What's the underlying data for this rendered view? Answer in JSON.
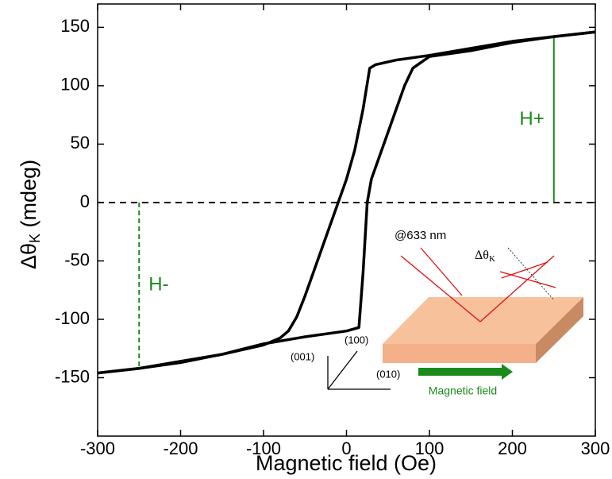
{
  "chart_data": {
    "type": "line",
    "xlabel": "Magnetic field (Oe)",
    "ylabel": {
      "main": "Δθ",
      "sub": "K",
      "unit": " (mdeg)"
    },
    "xlim": [
      -300,
      300
    ],
    "ylim": [
      -200,
      170
    ],
    "xticks": [
      -300,
      -200,
      -100,
      0,
      100,
      200,
      300
    ],
    "yticks": [
      -150,
      -100,
      -50,
      0,
      50,
      100,
      150
    ],
    "series": [
      {
        "color": "#000000",
        "x": [
          300,
          250,
          200,
          150,
          100,
          60,
          35,
          28,
          20,
          10,
          0,
          -10,
          -20,
          -30,
          -40,
          -50,
          -60,
          -70,
          -80,
          -100,
          -150,
          -200,
          -250,
          -300
        ],
        "values": [
          146,
          142,
          138,
          132,
          126,
          122,
          118,
          115,
          80,
          45,
          20,
          0,
          -20,
          -40,
          -60,
          -80,
          -98,
          -110,
          -116,
          -122,
          -130,
          -136,
          -142,
          -146
        ]
      },
      {
        "color": "#000000",
        "x": [
          -300,
          -250,
          -200,
          -150,
          -100,
          -50,
          0,
          15,
          20,
          25,
          30,
          50,
          70,
          80,
          100,
          150,
          200,
          250,
          300
        ],
        "values": [
          -146,
          -142,
          -137,
          -130,
          -121,
          -115,
          -110,
          -107,
          -60,
          0,
          20,
          60,
          100,
          115,
          125,
          130,
          137,
          142,
          146
        ]
      }
    ],
    "reference_line": {
      "y": 0,
      "color": "#000000"
    },
    "markers": [
      {
        "label": "H+",
        "x": 250,
        "y": 142,
        "color": "#1a8a1a",
        "dashed": false
      },
      {
        "label": "H-",
        "x": -250,
        "y": -142,
        "color": "#1a8a1a",
        "dashed": true
      }
    ],
    "inset": {
      "wavelength": "@633 nm",
      "angle": {
        "main": "Δθ",
        "sub": "K"
      },
      "axes": [
        "(001)",
        "(100)",
        "(010)"
      ],
      "field": "Magnetic field"
    }
  }
}
